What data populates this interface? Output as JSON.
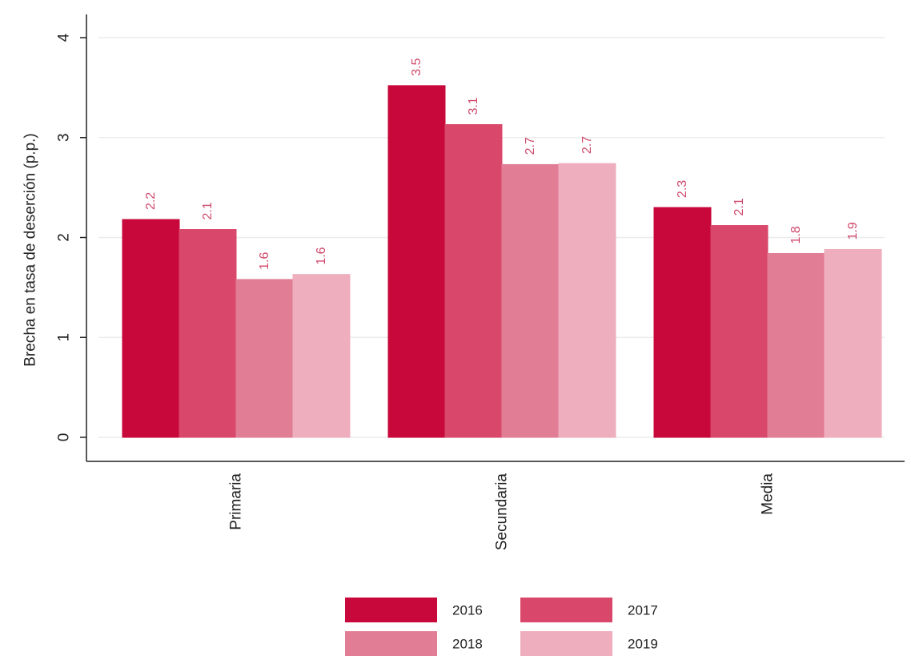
{
  "chart_data": {
    "type": "bar",
    "title": "",
    "xlabel": "",
    "ylabel": "Brecha en tasa de deserción (p.p.)",
    "ylim": [
      0,
      4
    ],
    "yticks": [
      "0",
      "1",
      "2",
      "3",
      "4"
    ],
    "grid": true,
    "legend_position": "bottom",
    "categories": [
      "Primaria",
      "Secundaria",
      "Media"
    ],
    "series": [
      {
        "name": "2016",
        "color": "#c8073a",
        "values": [
          2.18,
          3.52,
          2.3
        ],
        "labels": [
          "2.2",
          "3.5",
          "2.3"
        ]
      },
      {
        "name": "2017",
        "color": "#d9486a",
        "values": [
          2.08,
          3.13,
          2.12
        ],
        "labels": [
          "2.1",
          "3.1",
          "2.1"
        ]
      },
      {
        "name": "2018",
        "color": "#e17e96",
        "values": [
          1.58,
          2.73,
          1.84
        ],
        "labels": [
          "1.6",
          "2.7",
          "1.8"
        ]
      },
      {
        "name": "2019",
        "color": "#eeaebd",
        "values": [
          1.63,
          2.74,
          1.88
        ],
        "labels": [
          "1.6",
          "2.7",
          "1.9"
        ]
      }
    ],
    "data_label_color": "#d04a6c"
  }
}
